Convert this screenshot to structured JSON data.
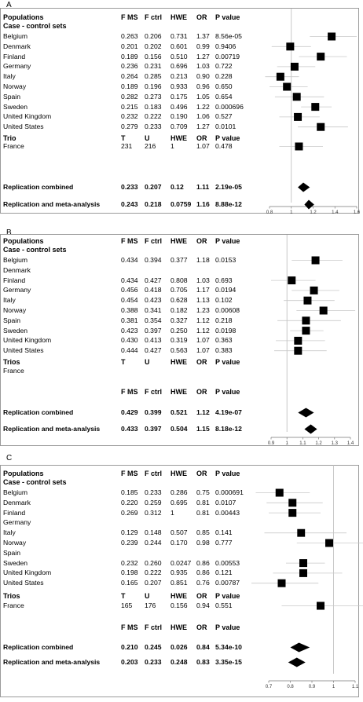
{
  "columns": {
    "pop": "Populations",
    "fms": "F MS",
    "fctrl": "F ctrl",
    "hwe": "HWE",
    "or": "OR",
    "p": "P value"
  },
  "panels": [
    {
      "label": "A",
      "section1": "Case - control sets",
      "rows": [
        {
          "pop": "Belgium",
          "fms": "0.263",
          "fctrl": "0.206",
          "hwe": "0.731",
          "or": "1.37",
          "p": "8.56e-05"
        },
        {
          "pop": "Denmark",
          "fms": "0.201",
          "fctrl": "0.202",
          "hwe": "0.601",
          "or": "0.99",
          "p": "0.9406"
        },
        {
          "pop": "Finland",
          "fms": "0.189",
          "fctrl": "0.156",
          "hwe": "0.510",
          "or": "1.27",
          "p": "0.00719"
        },
        {
          "pop": "Germany",
          "fms": "0.236",
          "fctrl": "0.231",
          "hwe": "0.696",
          "or": "1.03",
          "p": "0.722"
        },
        {
          "pop": "Italy",
          "fms": "0.264",
          "fctrl": "0.285",
          "hwe": "0.213",
          "or": "0.90",
          "p": "0.228"
        },
        {
          "pop": "Norway",
          "fms": "0.189",
          "fctrl": "0.196",
          "hwe": "0.933",
          "or": "0.96",
          "p": "0.650"
        },
        {
          "pop": "Spain",
          "fms": "0.282",
          "fctrl": "0.273",
          "hwe": "0.175",
          "or": "1.05",
          "p": "0.654"
        },
        {
          "pop": "Sweden",
          "fms": "0.215",
          "fctrl": "0.183",
          "hwe": "0.496",
          "or": "1.22",
          "p": "0.000696"
        },
        {
          "pop": "United Kingdom",
          "fms": "0.232",
          "fctrl": "0.222",
          "hwe": "0.190",
          "or": "1.06",
          "p": "0.527"
        },
        {
          "pop": "United States",
          "fms": "0.279",
          "fctrl": "0.233",
          "hwe": "0.709",
          "or": "1.27",
          "p": "0.0101"
        }
      ],
      "trio_title": "Trio",
      "trio_header": {
        "t": "T",
        "u": "U",
        "hwe": "HWE",
        "or": "OR",
        "p": "P value"
      },
      "trio": {
        "pop": "France",
        "t": "231",
        "u": "216",
        "hwe": "1",
        "or": "1.07",
        "p": "0.478"
      },
      "show_header2": false,
      "combined": [
        {
          "pop": "Replication combined",
          "fms": "0.233",
          "fctrl": "0.207",
          "hwe": "0.12",
          "or": "1.11",
          "p": "2.19e-05"
        },
        {
          "pop": "Replication and meta-analysis",
          "fms": "0.243",
          "fctrl": "0.218",
          "hwe": "0.0759",
          "or": "1.16",
          "p": "8.88e-12"
        }
      ]
    },
    {
      "label": "B",
      "section1": "Case - control sets",
      "rows": [
        {
          "pop": "Belgium",
          "fms": "0.434",
          "fctrl": "0.394",
          "hwe": "0.377",
          "or": "1.18",
          "p": "0.0153"
        },
        {
          "pop": "Denmark",
          "fms": "",
          "fctrl": "",
          "hwe": "",
          "or": "",
          "p": ""
        },
        {
          "pop": "Finland",
          "fms": "0.434",
          "fctrl": "0.427",
          "hwe": "0.808",
          "or": "1.03",
          "p": "0.693"
        },
        {
          "pop": "Germany",
          "fms": "0.456",
          "fctrl": "0.418",
          "hwe": "0.705",
          "or": "1.17",
          "p": "0.0194"
        },
        {
          "pop": "Italy",
          "fms": "0.454",
          "fctrl": "0.423",
          "hwe": "0.628",
          "or": "1.13",
          "p": "0.102"
        },
        {
          "pop": "Norway",
          "fms": "0.388",
          "fctrl": "0.341",
          "hwe": "0.182",
          "or": "1.23",
          "p": "0.00608"
        },
        {
          "pop": "Spain",
          "fms": "0.381",
          "fctrl": "0.354",
          "hwe": "0.327",
          "or": "1.12",
          "p": "0.218"
        },
        {
          "pop": "Sweden",
          "fms": "0.423",
          "fctrl": "0.397",
          "hwe": "0.250",
          "or": "1.12",
          "p": "0.0198"
        },
        {
          "pop": "United Kingdom",
          "fms": "0.430",
          "fctrl": "0.413",
          "hwe": "0.319",
          "or": "1.07",
          "p": "0.363"
        },
        {
          "pop": "United States",
          "fms": "0.444",
          "fctrl": "0.427",
          "hwe": "0.563",
          "or": "1.07",
          "p": "0.383"
        }
      ],
      "trio_title": "Trios",
      "trio_header": {
        "t": "T",
        "u": "U",
        "hwe": "HWE",
        "or": "OR",
        "p": "P value"
      },
      "trio": {
        "pop": "France",
        "t": "",
        "u": "",
        "hwe": "",
        "or": "",
        "p": ""
      },
      "show_header2": true,
      "combined": [
        {
          "pop": "Replication combined",
          "fms": "0.429",
          "fctrl": "0.399",
          "hwe": "0.521",
          "or": "1.12",
          "p": "4.19e-07"
        },
        {
          "pop": "Replication and meta-analysis",
          "fms": "0.433",
          "fctrl": "0.397",
          "hwe": "0.504",
          "or": "1.15",
          "p": "8.18e-12"
        }
      ]
    },
    {
      "label": "C",
      "section1": "Case - control sets",
      "rows": [
        {
          "pop": "Belgium",
          "fms": "0.185",
          "fctrl": "0.233",
          "hwe": "0.286",
          "or": "0.75",
          "p": "0.000691"
        },
        {
          "pop": "Denmark",
          "fms": "0.220",
          "fctrl": "0.259",
          "hwe": "0.695",
          "or": "0.81",
          "p": "0.0107"
        },
        {
          "pop": "Finland",
          "fms": "0.269",
          "fctrl": "0.312",
          "hwe": "1",
          "or": "0.81",
          "p": "0.00443"
        },
        {
          "pop": "Germany",
          "fms": "",
          "fctrl": "",
          "hwe": "",
          "or": "",
          "p": ""
        },
        {
          "pop": "Italy",
          "fms": "0.129",
          "fctrl": "0.148",
          "hwe": "0.507",
          "or": "0.85",
          "p": "0.141"
        },
        {
          "pop": "Norway",
          "fms": "0.239",
          "fctrl": "0.244",
          "hwe": "0.170",
          "or": "0.98",
          "p": "0.777"
        },
        {
          "pop": "Spain",
          "fms": "",
          "fctrl": "",
          "hwe": "",
          "or": "",
          "p": ""
        },
        {
          "pop": "Sweden",
          "fms": "0.232",
          "fctrl": "0.260",
          "hwe": "0.0247",
          "or": "0.86",
          "p": "0.00553"
        },
        {
          "pop": "United Kingdom",
          "fms": "0.198",
          "fctrl": "0.222",
          "hwe": "0.935",
          "or": "0.86",
          "p": "0.121"
        },
        {
          "pop": "United States",
          "fms": "0.165",
          "fctrl": "0.207",
          "hwe": "0.851",
          "or": "0.76",
          "p": "0.00787"
        }
      ],
      "trio_title": "Trios",
      "trio_header": {
        "t": "T",
        "u": "U",
        "hwe": "HWE",
        "or": "OR",
        "p": "P value"
      },
      "trio": {
        "pop": "France",
        "t": "165",
        "u": "176",
        "hwe": "0.156",
        "or": "0.94",
        "p": "0.551"
      },
      "show_header2": true,
      "combined": [
        {
          "pop": "Replication combined",
          "fms": "0.210",
          "fctrl": "0.245",
          "hwe": "0.026",
          "or": "0.84",
          "p": "5.34e-10"
        },
        {
          "pop": "Replication and meta-analysis",
          "fms": "0.203",
          "fctrl": "0.233",
          "hwe": "0.248",
          "or": "0.83",
          "p": "3.35e-15"
        }
      ]
    }
  ],
  "chart_data": [
    {
      "type": "scatter",
      "panel": "A",
      "xlim": [
        0.8,
        1.6
      ],
      "xticks": [
        "0.8",
        "1",
        "1.2",
        "1.4",
        "1.6"
      ],
      "reference_line": 1,
      "points": [
        {
          "label": "Belgium",
          "or": 1.37,
          "ci": [
            1.17,
            1.6
          ]
        },
        {
          "label": "Denmark",
          "or": 0.99,
          "ci": [
            0.82,
            1.18
          ]
        },
        {
          "label": "Finland",
          "or": 1.27,
          "ci": [
            1.07,
            1.51
          ]
        },
        {
          "label": "Germany",
          "or": 1.03,
          "ci": [
            0.87,
            1.22
          ]
        },
        {
          "label": "Italy",
          "or": 0.9,
          "ci": [
            0.76,
            1.07
          ]
        },
        {
          "label": "Norway",
          "or": 0.96,
          "ci": [
            0.8,
            1.15
          ]
        },
        {
          "label": "Spain",
          "or": 1.05,
          "ci": [
            0.85,
            1.3
          ]
        },
        {
          "label": "Sweden",
          "or": 1.22,
          "ci": [
            1.09,
            1.37
          ]
        },
        {
          "label": "United Kingdom",
          "or": 1.06,
          "ci": [
            0.89,
            1.26
          ]
        },
        {
          "label": "United States",
          "or": 1.27,
          "ci": [
            1.06,
            1.52
          ]
        },
        {
          "label": "France",
          "or": 1.07,
          "ci": [
            0.89,
            1.29
          ]
        }
      ],
      "diamonds": [
        {
          "label": "Replication combined",
          "or": 1.11,
          "ci": [
            1.06,
            1.17
          ]
        },
        {
          "label": "Replication and meta-analysis",
          "or": 1.16,
          "ci": [
            1.12,
            1.21
          ]
        }
      ]
    },
    {
      "type": "scatter",
      "panel": "B",
      "xlim": [
        0.9,
        1.4
      ],
      "xticks": [
        "0.9",
        "1",
        "1.1",
        "1.2",
        "1.3",
        "1.4"
      ],
      "reference_line": 1,
      "points": [
        {
          "label": "Belgium",
          "or": 1.18,
          "ci": [
            1.03,
            1.35
          ]
        },
        {
          "label": "Finland",
          "or": 1.03,
          "ci": [
            0.9,
            1.18
          ]
        },
        {
          "label": "Germany",
          "or": 1.17,
          "ci": [
            1.03,
            1.33
          ]
        },
        {
          "label": "Italy",
          "or": 1.13,
          "ci": [
            0.98,
            1.3
          ]
        },
        {
          "label": "Norway",
          "or": 1.23,
          "ci": [
            1.06,
            1.43
          ]
        },
        {
          "label": "Spain",
          "or": 1.12,
          "ci": [
            0.94,
            1.34
          ]
        },
        {
          "label": "Sweden",
          "or": 1.12,
          "ci": [
            1.02,
            1.23
          ]
        },
        {
          "label": "United Kingdom",
          "or": 1.07,
          "ci": [
            0.93,
            1.24
          ]
        },
        {
          "label": "United States",
          "or": 1.07,
          "ci": [
            0.92,
            1.25
          ]
        }
      ],
      "diamonds": [
        {
          "label": "Replication combined",
          "or": 1.12,
          "ci": [
            1.07,
            1.17
          ]
        },
        {
          "label": "Replication and meta-analysis",
          "or": 1.15,
          "ci": [
            1.11,
            1.19
          ]
        }
      ]
    },
    {
      "type": "scatter",
      "panel": "C",
      "xlim": [
        0.7,
        1.1
      ],
      "xticks": [
        "0.7",
        "0.8",
        "0.9",
        "1",
        "1.1"
      ],
      "reference_line": 1,
      "points": [
        {
          "label": "Belgium",
          "or": 0.75,
          "ci": [
            0.64,
            0.89
          ]
        },
        {
          "label": "Denmark",
          "or": 0.81,
          "ci": [
            0.69,
            0.95
          ]
        },
        {
          "label": "Finland",
          "or": 0.81,
          "ci": [
            0.7,
            0.94
          ]
        },
        {
          "label": "Italy",
          "or": 0.85,
          "ci": [
            0.68,
            1.06
          ]
        },
        {
          "label": "Norway",
          "or": 0.98,
          "ci": [
            0.83,
            1.15
          ]
        },
        {
          "label": "Sweden",
          "or": 0.86,
          "ci": [
            0.78,
            0.96
          ]
        },
        {
          "label": "United Kingdom",
          "or": 0.86,
          "ci": [
            0.72,
            1.04
          ]
        },
        {
          "label": "United States",
          "or": 0.76,
          "ci": [
            0.62,
            0.93
          ]
        },
        {
          "label": "France",
          "or": 0.94,
          "ci": [
            0.76,
            1.16
          ]
        }
      ],
      "diamonds": [
        {
          "label": "Replication combined",
          "or": 0.84,
          "ci": [
            0.8,
            0.89
          ]
        },
        {
          "label": "Replication and meta-analysis",
          "or": 0.83,
          "ci": [
            0.79,
            0.87
          ]
        }
      ]
    }
  ]
}
